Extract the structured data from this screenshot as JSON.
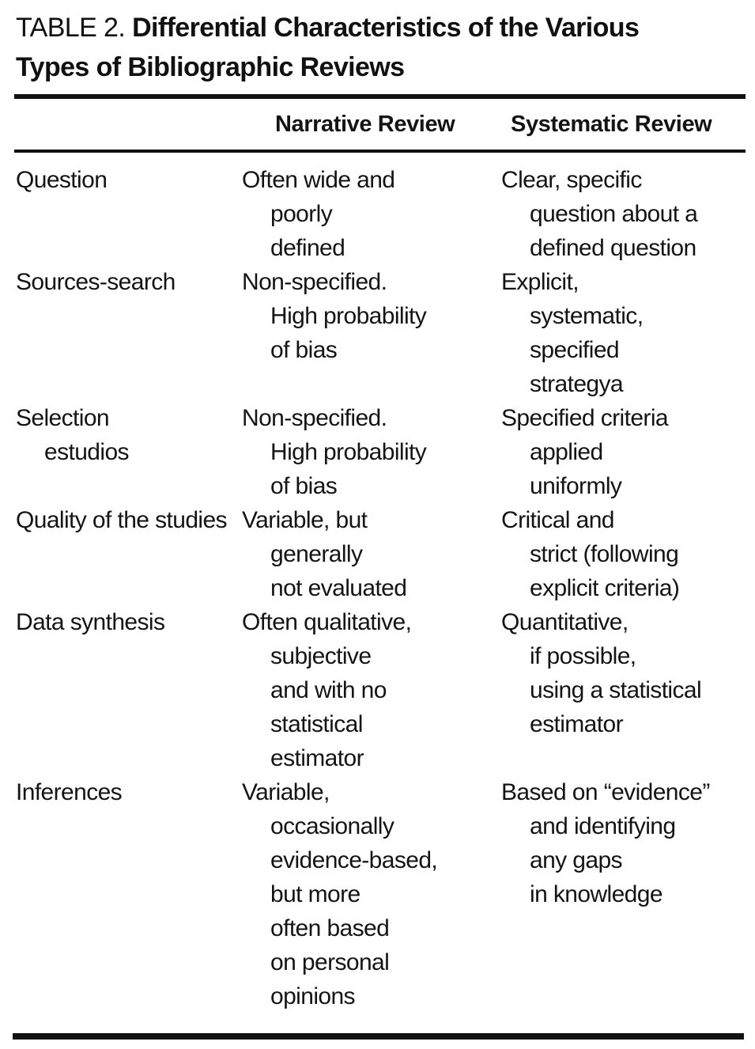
{
  "page": {
    "background": "#ffffff",
    "text_color": "#141414",
    "rule_color": "#111111"
  },
  "table": {
    "label": "TABLE 2.",
    "title_line1": "Differential Characteristics of the Various",
    "title_line2": "Types of Bibliographic Reviews",
    "columns": [
      "",
      "Narrative Review",
      "Systematic Review"
    ],
    "rows": [
      {
        "characteristic": [
          "Question"
        ],
        "narrative": [
          "Often wide and",
          "poorly",
          "defined"
        ],
        "systematic": [
          "Clear, specific",
          "question about a",
          "defined question"
        ]
      },
      {
        "characteristic": [
          "Sources-search"
        ],
        "narrative": [
          "Non-specified.",
          "High probability",
          "of bias"
        ],
        "systematic": [
          "Explicit,",
          "systematic,",
          "specified",
          "strategya"
        ]
      },
      {
        "characteristic": [
          "Selection",
          "estudios"
        ],
        "narrative": [
          "Non-specified.",
          "High probability",
          "of bias"
        ],
        "systematic": [
          "Specified criteria",
          "applied",
          "uniformly"
        ]
      },
      {
        "characteristic": [
          "Quality of the studies"
        ],
        "narrative": [
          "Variable, but",
          "generally",
          "not evaluated"
        ],
        "systematic": [
          "Critical and",
          "strict (following",
          "explicit criteria)"
        ]
      },
      {
        "characteristic": [
          "Data synthesis"
        ],
        "narrative": [
          "Often qualitative,",
          "subjective",
          "and with no",
          "statistical",
          "estimator"
        ],
        "systematic": [
          "Quantitative,",
          "if possible,",
          "using a statistical",
          "estimator"
        ]
      },
      {
        "characteristic": [
          "Inferences"
        ],
        "narrative": [
          "Variable,",
          "occasionally",
          "evidence-based,",
          "but more",
          "often based",
          "on personal",
          "opinions"
        ],
        "systematic": [
          "Based on “evidence”",
          "and identifying",
          "any gaps",
          "in knowledge"
        ]
      }
    ]
  }
}
